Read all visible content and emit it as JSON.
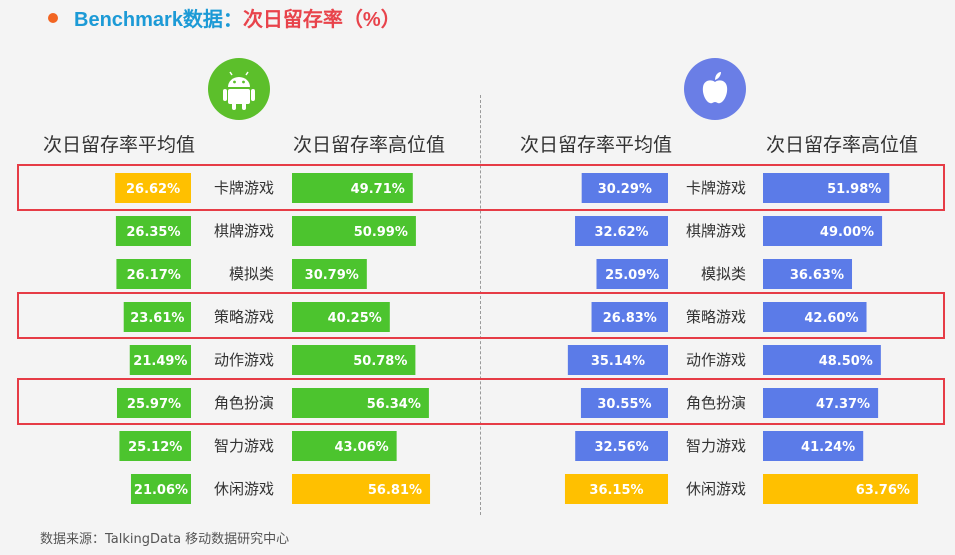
{
  "title": {
    "prefix": "Benchmark数据：",
    "highlight": "次日留存率（%）"
  },
  "columns": {
    "android_avg": "次日留存率平均值",
    "android_high": "次日留存率高位值",
    "ios_avg": "次日留存率平均值",
    "ios_high": "次日留存率高位值"
  },
  "logos": {
    "android": "android-icon",
    "ios": "apple-icon"
  },
  "colors": {
    "android_bar": "#4cc42e",
    "ios_bar": "#5b7be8",
    "max_bar": "#ffc000",
    "highlight_box": "#e63c46",
    "title_accent": "#1c9ad6",
    "title_highlight": "#e8434b"
  },
  "chart_data": {
    "type": "bar",
    "categories": [
      "卡牌游戏",
      "棋牌游戏",
      "模拟类",
      "策略游戏",
      "动作游戏",
      "角色扮演",
      "智力游戏",
      "休闲游戏"
    ],
    "series": [
      {
        "name": "Android 次日留存率平均值",
        "values": [
          26.62,
          26.35,
          26.17,
          23.61,
          21.49,
          25.97,
          25.12,
          21.06
        ],
        "max_index": 0
      },
      {
        "name": "Android 次日留存率高位值",
        "values": [
          49.71,
          50.99,
          30.79,
          40.25,
          50.78,
          56.34,
          43.06,
          56.81
        ],
        "max_index": 7
      },
      {
        "name": "iOS 次日留存率平均值",
        "values": [
          30.29,
          32.62,
          25.09,
          26.83,
          35.14,
          30.55,
          32.56,
          36.15
        ],
        "max_index": 7
      },
      {
        "name": "iOS 次日留存率高位值",
        "values": [
          51.98,
          49.0,
          36.63,
          42.6,
          48.5,
          47.37,
          41.24,
          63.76
        ],
        "max_index": 7
      }
    ],
    "labels": [
      [
        "26.62%",
        "26.35%",
        "26.17%",
        "23.61%",
        "21.49%",
        "25.97%",
        "25.12%",
        "21.06%"
      ],
      [
        "49.71%",
        "50.99%",
        "30.79%",
        "40.25%",
        "50.78%",
        "56.34%",
        "43.06%",
        "56.81%"
      ],
      [
        "30.29%",
        "32.62%",
        "25.09%",
        "26.83%",
        "35.14%",
        "30.55%",
        "32.56%",
        "36.15%"
      ],
      [
        "51.98%",
        "49.00%",
        "36.63%",
        "42.60%",
        "48.50%",
        "47.37%",
        "41.24%",
        "63.76%"
      ]
    ],
    "highlighted_categories": [
      "卡牌游戏",
      "策略游戏",
      "角色扮演"
    ],
    "unit": "%"
  },
  "source": "数据来源：TalkingData 移动数据研究中心"
}
